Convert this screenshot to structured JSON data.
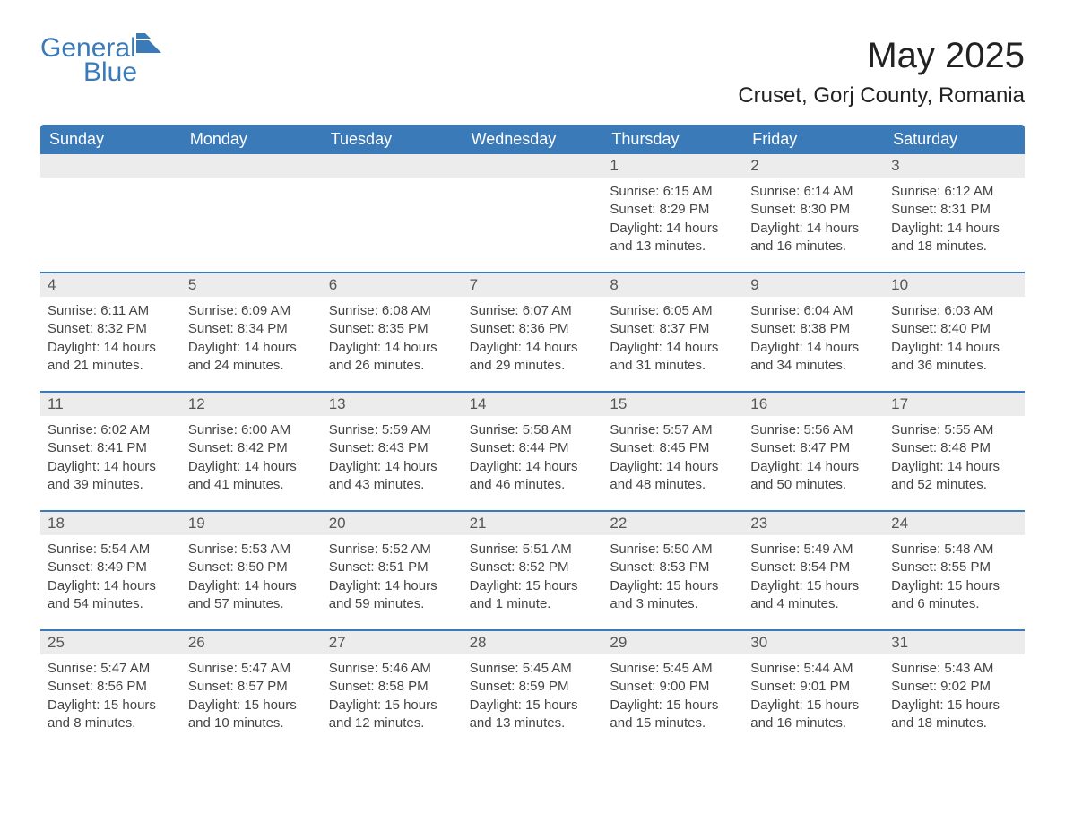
{
  "brand": {
    "name_part1": "General",
    "name_part2": "Blue",
    "logo_color": "#3a7ab8"
  },
  "title": "May 2025",
  "location": "Cruset, Gorj County, Romania",
  "colors": {
    "header_bg": "#3a7ab8",
    "header_text": "#ffffff",
    "daybar_bg": "#ececec",
    "text": "#444444",
    "border": "#3a7ab8"
  },
  "weekdays": [
    "Sunday",
    "Monday",
    "Tuesday",
    "Wednesday",
    "Thursday",
    "Friday",
    "Saturday"
  ],
  "weeks": [
    [
      {
        "day": "",
        "sunrise": "",
        "sunset": "",
        "daylight": ""
      },
      {
        "day": "",
        "sunrise": "",
        "sunset": "",
        "daylight": ""
      },
      {
        "day": "",
        "sunrise": "",
        "sunset": "",
        "daylight": ""
      },
      {
        "day": "",
        "sunrise": "",
        "sunset": "",
        "daylight": ""
      },
      {
        "day": "1",
        "sunrise": "Sunrise: 6:15 AM",
        "sunset": "Sunset: 8:29 PM",
        "daylight": "Daylight: 14 hours and 13 minutes."
      },
      {
        "day": "2",
        "sunrise": "Sunrise: 6:14 AM",
        "sunset": "Sunset: 8:30 PM",
        "daylight": "Daylight: 14 hours and 16 minutes."
      },
      {
        "day": "3",
        "sunrise": "Sunrise: 6:12 AM",
        "sunset": "Sunset: 8:31 PM",
        "daylight": "Daylight: 14 hours and 18 minutes."
      }
    ],
    [
      {
        "day": "4",
        "sunrise": "Sunrise: 6:11 AM",
        "sunset": "Sunset: 8:32 PM",
        "daylight": "Daylight: 14 hours and 21 minutes."
      },
      {
        "day": "5",
        "sunrise": "Sunrise: 6:09 AM",
        "sunset": "Sunset: 8:34 PM",
        "daylight": "Daylight: 14 hours and 24 minutes."
      },
      {
        "day": "6",
        "sunrise": "Sunrise: 6:08 AM",
        "sunset": "Sunset: 8:35 PM",
        "daylight": "Daylight: 14 hours and 26 minutes."
      },
      {
        "day": "7",
        "sunrise": "Sunrise: 6:07 AM",
        "sunset": "Sunset: 8:36 PM",
        "daylight": "Daylight: 14 hours and 29 minutes."
      },
      {
        "day": "8",
        "sunrise": "Sunrise: 6:05 AM",
        "sunset": "Sunset: 8:37 PM",
        "daylight": "Daylight: 14 hours and 31 minutes."
      },
      {
        "day": "9",
        "sunrise": "Sunrise: 6:04 AM",
        "sunset": "Sunset: 8:38 PM",
        "daylight": "Daylight: 14 hours and 34 minutes."
      },
      {
        "day": "10",
        "sunrise": "Sunrise: 6:03 AM",
        "sunset": "Sunset: 8:40 PM",
        "daylight": "Daylight: 14 hours and 36 minutes."
      }
    ],
    [
      {
        "day": "11",
        "sunrise": "Sunrise: 6:02 AM",
        "sunset": "Sunset: 8:41 PM",
        "daylight": "Daylight: 14 hours and 39 minutes."
      },
      {
        "day": "12",
        "sunrise": "Sunrise: 6:00 AM",
        "sunset": "Sunset: 8:42 PM",
        "daylight": "Daylight: 14 hours and 41 minutes."
      },
      {
        "day": "13",
        "sunrise": "Sunrise: 5:59 AM",
        "sunset": "Sunset: 8:43 PM",
        "daylight": "Daylight: 14 hours and 43 minutes."
      },
      {
        "day": "14",
        "sunrise": "Sunrise: 5:58 AM",
        "sunset": "Sunset: 8:44 PM",
        "daylight": "Daylight: 14 hours and 46 minutes."
      },
      {
        "day": "15",
        "sunrise": "Sunrise: 5:57 AM",
        "sunset": "Sunset: 8:45 PM",
        "daylight": "Daylight: 14 hours and 48 minutes."
      },
      {
        "day": "16",
        "sunrise": "Sunrise: 5:56 AM",
        "sunset": "Sunset: 8:47 PM",
        "daylight": "Daylight: 14 hours and 50 minutes."
      },
      {
        "day": "17",
        "sunrise": "Sunrise: 5:55 AM",
        "sunset": "Sunset: 8:48 PM",
        "daylight": "Daylight: 14 hours and 52 minutes."
      }
    ],
    [
      {
        "day": "18",
        "sunrise": "Sunrise: 5:54 AM",
        "sunset": "Sunset: 8:49 PM",
        "daylight": "Daylight: 14 hours and 54 minutes."
      },
      {
        "day": "19",
        "sunrise": "Sunrise: 5:53 AM",
        "sunset": "Sunset: 8:50 PM",
        "daylight": "Daylight: 14 hours and 57 minutes."
      },
      {
        "day": "20",
        "sunrise": "Sunrise: 5:52 AM",
        "sunset": "Sunset: 8:51 PM",
        "daylight": "Daylight: 14 hours and 59 minutes."
      },
      {
        "day": "21",
        "sunrise": "Sunrise: 5:51 AM",
        "sunset": "Sunset: 8:52 PM",
        "daylight": "Daylight: 15 hours and 1 minute."
      },
      {
        "day": "22",
        "sunrise": "Sunrise: 5:50 AM",
        "sunset": "Sunset: 8:53 PM",
        "daylight": "Daylight: 15 hours and 3 minutes."
      },
      {
        "day": "23",
        "sunrise": "Sunrise: 5:49 AM",
        "sunset": "Sunset: 8:54 PM",
        "daylight": "Daylight: 15 hours and 4 minutes."
      },
      {
        "day": "24",
        "sunrise": "Sunrise: 5:48 AM",
        "sunset": "Sunset: 8:55 PM",
        "daylight": "Daylight: 15 hours and 6 minutes."
      }
    ],
    [
      {
        "day": "25",
        "sunrise": "Sunrise: 5:47 AM",
        "sunset": "Sunset: 8:56 PM",
        "daylight": "Daylight: 15 hours and 8 minutes."
      },
      {
        "day": "26",
        "sunrise": "Sunrise: 5:47 AM",
        "sunset": "Sunset: 8:57 PM",
        "daylight": "Daylight: 15 hours and 10 minutes."
      },
      {
        "day": "27",
        "sunrise": "Sunrise: 5:46 AM",
        "sunset": "Sunset: 8:58 PM",
        "daylight": "Daylight: 15 hours and 12 minutes."
      },
      {
        "day": "28",
        "sunrise": "Sunrise: 5:45 AM",
        "sunset": "Sunset: 8:59 PM",
        "daylight": "Daylight: 15 hours and 13 minutes."
      },
      {
        "day": "29",
        "sunrise": "Sunrise: 5:45 AM",
        "sunset": "Sunset: 9:00 PM",
        "daylight": "Daylight: 15 hours and 15 minutes."
      },
      {
        "day": "30",
        "sunrise": "Sunrise: 5:44 AM",
        "sunset": "Sunset: 9:01 PM",
        "daylight": "Daylight: 15 hours and 16 minutes."
      },
      {
        "day": "31",
        "sunrise": "Sunrise: 5:43 AM",
        "sunset": "Sunset: 9:02 PM",
        "daylight": "Daylight: 15 hours and 18 minutes."
      }
    ]
  ]
}
